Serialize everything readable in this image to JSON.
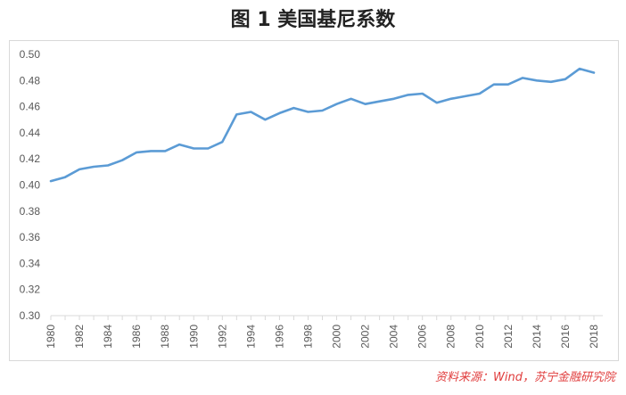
{
  "title": "图 1  美国基尼系数",
  "source": "资料来源：Wind，苏宁金融研究院",
  "colors": {
    "line": "#5b9bd5",
    "axis": "#d9d9d9",
    "text": "#595959",
    "source": "#e03c3c"
  },
  "chart_data": {
    "type": "line",
    "title": "图 1  美国基尼系数",
    "xlabel": "",
    "ylabel": "",
    "ylim": [
      0.3,
      0.5
    ],
    "y_ticks": [
      "0.30",
      "0.32",
      "0.34",
      "0.36",
      "0.38",
      "0.40",
      "0.42",
      "0.44",
      "0.46",
      "0.48",
      "0.50"
    ],
    "x_ticks": [
      "1980",
      "1982",
      "1984",
      "1986",
      "1988",
      "1990",
      "1992",
      "1994",
      "1996",
      "1998",
      "2000",
      "2002",
      "2004",
      "2006",
      "2008",
      "2010",
      "2012",
      "2014",
      "2016",
      "2018"
    ],
    "grid": true,
    "legend": "none",
    "series": [
      {
        "x": [
          1980,
          1981,
          1982,
          1983,
          1984,
          1985,
          1986,
          1987,
          1988,
          1989,
          1990,
          1991,
          1992,
          1993,
          1994,
          1995,
          1996,
          1997,
          1998,
          1999,
          2000,
          2001,
          2002,
          2003,
          2004,
          2005,
          2006,
          2007,
          2008,
          2009,
          2010,
          2011,
          2012,
          2013,
          2014,
          2015,
          2016,
          2017,
          2018
        ],
        "values": [
          0.403,
          0.406,
          0.412,
          0.414,
          0.415,
          0.419,
          0.425,
          0.426,
          0.426,
          0.431,
          0.428,
          0.428,
          0.433,
          0.454,
          0.456,
          0.45,
          0.455,
          0.459,
          0.456,
          0.457,
          0.462,
          0.466,
          0.462,
          0.464,
          0.466,
          0.469,
          0.47,
          0.463,
          0.466,
          0.468,
          0.47,
          0.477,
          0.477,
          0.482,
          0.48,
          0.479,
          0.481,
          0.489,
          0.486
        ]
      }
    ]
  }
}
